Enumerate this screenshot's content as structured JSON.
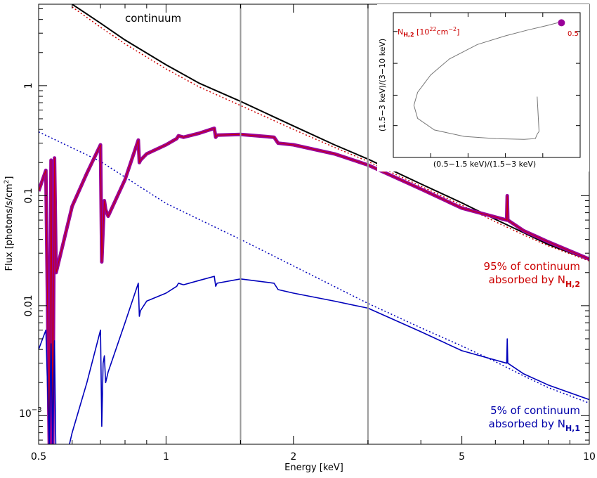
{
  "chart_data": {
    "type": "line",
    "xlabel": "Energy [keV]",
    "ylabel": "Flux [photons/s/cm",
    "ylabel_sup": "2",
    "ylabel_end": "]",
    "xscale": "log",
    "yscale": "log",
    "xlim": [
      0.5,
      10
    ],
    "ylim": [
      0.00055,
      5.5
    ],
    "x_ticks": [
      {
        "value": 0.5,
        "label": "0.5"
      },
      {
        "value": 1,
        "label": "1"
      },
      {
        "value": 2,
        "label": "2"
      },
      {
        "value": 5,
        "label": "5"
      },
      {
        "value": 10,
        "label": "10"
      }
    ],
    "y_ticks": [
      {
        "value": 1,
        "label": "1"
      },
      {
        "value": 0.1,
        "label": "0.1"
      },
      {
        "value": 0.01,
        "label": "0.01"
      }
    ],
    "y_tick_exp": {
      "value": 0.001,
      "base": "10",
      "exp": "−3"
    },
    "vertical_lines": [
      1.5,
      3.0
    ],
    "colors": {
      "continuum": "#000000",
      "absorbed_high": "#990099",
      "absorbed_low": "#0000bb",
      "fit_high": "#cc0000",
      "label_red": "#cc0000",
      "label_blue": "#0000aa",
      "vline": "#999999"
    },
    "annotations": {
      "continuum": "continuum",
      "red_line1": "95% of continuum",
      "red_line2": "absorbed by N",
      "red_sub": "H,2",
      "blue_line1": "5% of continuum",
      "blue_line2": "absorbed by N",
      "blue_sub": "H,1"
    },
    "series": [
      {
        "id": "continuum",
        "style": "solid",
        "x": [
          0.6,
          0.7,
          0.8,
          1,
          1.2,
          1.5,
          2,
          2.5,
          3,
          4,
          5,
          6,
          7,
          8,
          10
        ],
        "values": [
          5.5,
          3.7,
          2.6,
          1.55,
          1.05,
          0.72,
          0.43,
          0.29,
          0.215,
          0.128,
          0.086,
          0.061,
          0.046,
          0.036,
          0.026
        ]
      },
      {
        "id": "continuum-red-dotted",
        "style": "dotted",
        "x": [
          0.6,
          0.7,
          0.8,
          1,
          1.2,
          1.5,
          2,
          2.5,
          3,
          4,
          5,
          6,
          7,
          8,
          10
        ],
        "values": [
          5.2,
          3.4,
          2.4,
          1.42,
          0.97,
          0.66,
          0.4,
          0.275,
          0.205,
          0.122,
          0.082,
          0.058,
          0.044,
          0.035,
          0.0255
        ]
      },
      {
        "id": "continuum-blue-dotted",
        "style": "dotted",
        "x": [
          0.5,
          0.7,
          1,
          1.5,
          2,
          3,
          4,
          5,
          6,
          7,
          8,
          10
        ],
        "values": [
          0.38,
          0.205,
          0.085,
          0.04,
          0.023,
          0.0105,
          0.0063,
          0.0043,
          0.0031,
          0.0023,
          0.0018,
          0.0013
        ]
      },
      {
        "id": "absorbed-high",
        "style": "thick",
        "x": [
          0.5,
          0.52,
          0.53,
          0.535,
          0.54,
          0.545,
          0.55,
          0.6,
          0.65,
          0.7,
          0.705,
          0.71,
          0.715,
          0.72,
          0.73,
          0.8,
          0.86,
          0.865,
          0.87,
          0.9,
          1,
          1.06,
          1.07,
          1.1,
          1.2,
          1.3,
          1.31,
          1.32,
          1.5,
          1.8,
          1.84,
          2,
          2.5,
          3,
          4,
          5,
          6.38,
          6.4,
          6.42,
          7,
          8,
          10
        ],
        "values": [
          0.11,
          0.17,
          0.00055,
          0.21,
          0.00055,
          0.22,
          0.02,
          0.08,
          0.16,
          0.29,
          0.025,
          0.05,
          0.09,
          0.075,
          0.065,
          0.14,
          0.32,
          0.2,
          0.21,
          0.24,
          0.29,
          0.33,
          0.35,
          0.34,
          0.37,
          0.41,
          0.34,
          0.355,
          0.36,
          0.34,
          0.3,
          0.29,
          0.24,
          0.19,
          0.115,
          0.077,
          0.06,
          0.1,
          0.06,
          0.048,
          0.038,
          0.0265
        ]
      },
      {
        "id": "absorbed-low",
        "style": "solid",
        "x": [
          0.5,
          0.52,
          0.53,
          0.535,
          0.54,
          0.545,
          0.55,
          0.58,
          0.6,
          0.65,
          0.7,
          0.705,
          0.71,
          0.715,
          0.72,
          0.73,
          0.8,
          0.86,
          0.865,
          0.87,
          0.9,
          1,
          1.06,
          1.07,
          1.1,
          1.2,
          1.3,
          1.31,
          1.32,
          1.5,
          1.8,
          1.84,
          2,
          2.5,
          3,
          4,
          5,
          6.38,
          6.4,
          6.42,
          7,
          8,
          10
        ],
        "values": [
          0.004,
          0.006,
          0.00055,
          0.0045,
          0.00055,
          0.0048,
          0.0003,
          0.0004,
          0.0007,
          0.002,
          0.006,
          0.0008,
          0.003,
          0.0035,
          0.002,
          0.0025,
          0.007,
          0.016,
          0.008,
          0.009,
          0.011,
          0.013,
          0.015,
          0.016,
          0.0155,
          0.017,
          0.0185,
          0.015,
          0.016,
          0.0175,
          0.016,
          0.014,
          0.013,
          0.011,
          0.0095,
          0.0058,
          0.0039,
          0.003,
          0.005,
          0.003,
          0.0024,
          0.0019,
          0.0014
        ]
      }
    ],
    "inset": {
      "xlabel": "(0.5−1.5 keV)/(1.5−3 keV)",
      "ylabel": "(1.5−3 keV)/(3−10 keV)",
      "title_prefix": "N",
      "title_sub": "H,2",
      "title_mid": " [10",
      "title_sup1": "22",
      "title_unit": "cm",
      "title_sup2": "−2",
      "title_end": "]",
      "marker_label": "0.5",
      "curve": [
        [
          0.88,
          0.07
        ],
        [
          0.82,
          0.09
        ],
        [
          0.72,
          0.12
        ],
        [
          0.6,
          0.16
        ],
        [
          0.45,
          0.22
        ],
        [
          0.3,
          0.32
        ],
        [
          0.2,
          0.43
        ],
        [
          0.13,
          0.55
        ],
        [
          0.11,
          0.64
        ],
        [
          0.13,
          0.73
        ],
        [
          0.22,
          0.81
        ],
        [
          0.38,
          0.855
        ],
        [
          0.55,
          0.87
        ],
        [
          0.7,
          0.875
        ],
        [
          0.76,
          0.87
        ],
        [
          0.77,
          0.84
        ],
        [
          0.78,
          0.82
        ],
        [
          0.77,
          0.58
        ]
      ],
      "marker": [
        0.9,
        0.07
      ]
    }
  }
}
